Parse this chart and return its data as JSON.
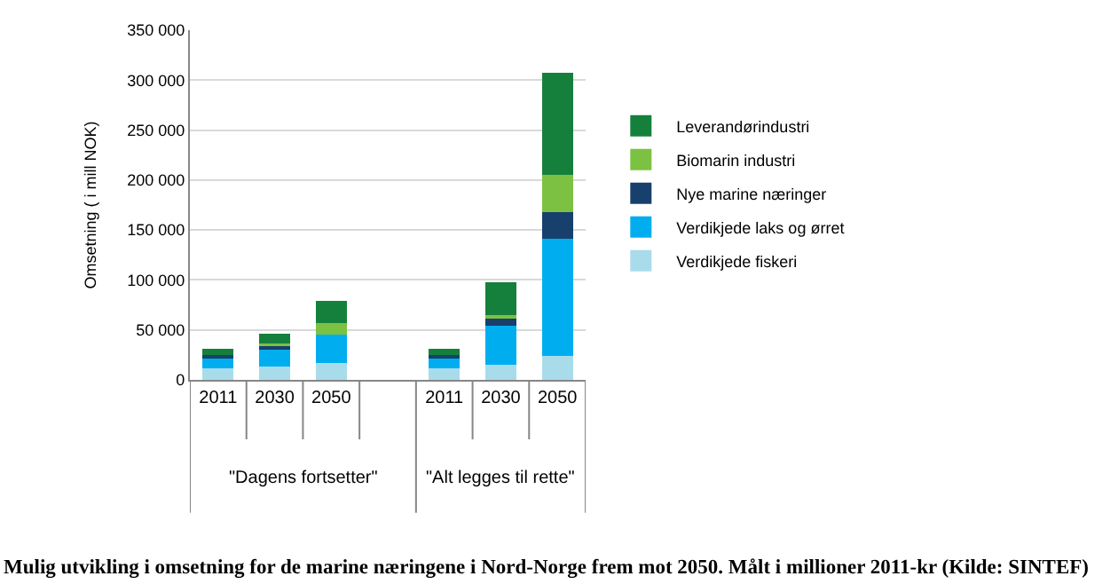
{
  "chart_data": {
    "type": "bar",
    "stacked": true,
    "categories": [
      "2011",
      "2030",
      "2050",
      null,
      "2011",
      "2030",
      "2050"
    ],
    "ylabel": "Omsetning ( i mill NOK)",
    "ylim": [
      0,
      350000
    ],
    "yticks": [
      {
        "value": 0,
        "label": "0"
      },
      {
        "value": 50000,
        "label": "50 000"
      },
      {
        "value": 100000,
        "label": "100 000"
      },
      {
        "value": 150000,
        "label": "150 000"
      },
      {
        "value": 200000,
        "label": "200 000"
      },
      {
        "value": 250000,
        "label": "250 000"
      },
      {
        "value": 300000,
        "label": "300 000"
      },
      {
        "value": 350000,
        "label": "350 000"
      }
    ],
    "series": [
      {
        "name": "Verdikjede fiskeri",
        "color": "#a9dcea",
        "values": [
          12000,
          13000,
          17000,
          null,
          12000,
          15000,
          24000
        ]
      },
      {
        "name": "Verdikjede laks og ørret",
        "color": "#00aeef",
        "values": [
          11000,
          18000,
          28000,
          null,
          11000,
          39000,
          117000
        ]
      },
      {
        "name": "Nye marine næringer",
        "color": "#17406d",
        "values": [
          2000,
          3000,
          null,
          null,
          2000,
          7000,
          27000
        ]
      },
      {
        "name": "Biomarin industri",
        "color": "#7dc142",
        "values": [
          null,
          2000,
          12000,
          null,
          null,
          4000,
          37000
        ]
      },
      {
        "name": "Leverandørindustri",
        "color": "#15803c",
        "values": [
          6000,
          10000,
          22000,
          null,
          6000,
          33000,
          102000
        ]
      }
    ],
    "grid": "y",
    "legend": "right",
    "annotations": [
      "\"Dagens fortsetter\"",
      "\"Alt legges til rette\"",
      "Mulig utvikling i omsetning for de marine næringene i Nord-Norge frem mot 2050. Målt i millioner 2011-kr (Kilde: SINTEF)"
    ]
  }
}
